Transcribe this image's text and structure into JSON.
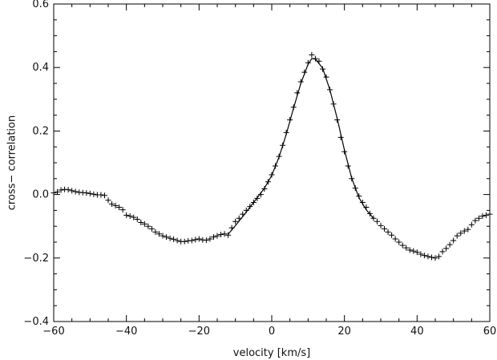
{
  "chart_data": {
    "type": "scatter",
    "xlabel": "velocity [km/s]",
    "ylabel": "cross− correlation",
    "xlim": [
      -60,
      60
    ],
    "ylim": [
      -0.4,
      0.6
    ],
    "x_ticks": [
      -60,
      -40,
      -20,
      0,
      20,
      40,
      60
    ],
    "x_tick_labels": [
      "−60",
      "−40",
      "−20",
      "0",
      "20",
      "40",
      "60"
    ],
    "y_ticks": [
      -0.4,
      -0.2,
      0.0,
      0.2,
      0.4,
      0.6
    ],
    "y_tick_labels": [
      "−0.4",
      "−0.2",
      "0.0",
      "0.2",
      "0.4",
      "0.6"
    ],
    "series": [
      {
        "marker": "plus",
        "points": [
          [
            -60,
            0.005
          ],
          [
            -59,
            0.008
          ],
          [
            -58,
            0.014
          ],
          [
            -57,
            0.016
          ],
          [
            -56,
            0.015
          ],
          [
            -55,
            0.012
          ],
          [
            -54,
            0.009
          ],
          [
            -53,
            0.007
          ],
          [
            -52,
            0.006
          ],
          [
            -51,
            0.005
          ],
          [
            -50,
            0.003
          ],
          [
            -49,
            0.001
          ],
          [
            -48,
            -0.001
          ],
          [
            -47,
            -0.001
          ],
          [
            -46,
            -0.003
          ],
          [
            -45,
            -0.018
          ],
          [
            -44,
            -0.03
          ],
          [
            -43,
            -0.035
          ],
          [
            -42,
            -0.04
          ],
          [
            -41,
            -0.048
          ],
          [
            -40,
            -0.065
          ],
          [
            -39,
            -0.068
          ],
          [
            -38,
            -0.072
          ],
          [
            -37,
            -0.078
          ],
          [
            -36,
            -0.088
          ],
          [
            -35,
            -0.093
          ],
          [
            -34,
            -0.1
          ],
          [
            -33,
            -0.108
          ],
          [
            -32,
            -0.118
          ],
          [
            -31,
            -0.124
          ],
          [
            -30,
            -0.13
          ],
          [
            -29,
            -0.134
          ],
          [
            -28,
            -0.138
          ],
          [
            -27,
            -0.141
          ],
          [
            -26,
            -0.145
          ],
          [
            -25,
            -0.148
          ],
          [
            -24,
            -0.148
          ],
          [
            -23,
            -0.146
          ],
          [
            -22,
            -0.145
          ],
          [
            -21,
            -0.142
          ],
          [
            -20,
            -0.14
          ],
          [
            -19,
            -0.143
          ],
          [
            -18,
            -0.144
          ],
          [
            -17,
            -0.14
          ],
          [
            -16,
            -0.134
          ],
          [
            -15,
            -0.13
          ],
          [
            -14,
            -0.126
          ],
          [
            -13,
            -0.124
          ],
          [
            -12,
            -0.128
          ],
          [
            -11,
            -0.105
          ],
          [
            -10,
            -0.085
          ],
          [
            -9,
            -0.075
          ],
          [
            -8,
            -0.062
          ],
          [
            -7,
            -0.05
          ],
          [
            -6,
            -0.038
          ],
          [
            -5,
            -0.025
          ],
          [
            -4,
            -0.012
          ],
          [
            -3,
            0.0
          ],
          [
            -2,
            0.018
          ],
          [
            -1,
            0.04
          ],
          [
            0,
            0.062
          ],
          [
            1,
            0.09
          ],
          [
            2,
            0.12
          ],
          [
            3,
            0.155
          ],
          [
            4,
            0.195
          ],
          [
            5,
            0.235
          ],
          [
            6,
            0.275
          ],
          [
            7,
            0.32
          ],
          [
            8,
            0.355
          ],
          [
            9,
            0.385
          ],
          [
            10,
            0.415
          ],
          [
            11,
            0.44
          ],
          [
            12,
            0.428
          ],
          [
            13,
            0.42
          ],
          [
            14,
            0.395
          ],
          [
            15,
            0.37
          ],
          [
            16,
            0.33
          ],
          [
            17,
            0.285
          ],
          [
            18,
            0.235
          ],
          [
            19,
            0.18
          ],
          [
            20,
            0.135
          ],
          [
            21,
            0.09
          ],
          [
            22,
            0.05
          ],
          [
            23,
            0.02
          ],
          [
            24,
            -0.005
          ],
          [
            25,
            -0.025
          ],
          [
            26,
            -0.04
          ],
          [
            27,
            -0.06
          ],
          [
            28,
            -0.075
          ],
          [
            29,
            -0.085
          ],
          [
            30,
            -0.098
          ],
          [
            31,
            -0.108
          ],
          [
            32,
            -0.118
          ],
          [
            33,
            -0.128
          ],
          [
            34,
            -0.14
          ],
          [
            35,
            -0.15
          ],
          [
            36,
            -0.16
          ],
          [
            37,
            -0.168
          ],
          [
            38,
            -0.175
          ],
          [
            39,
            -0.178
          ],
          [
            40,
            -0.182
          ],
          [
            41,
            -0.188
          ],
          [
            42,
            -0.192
          ],
          [
            43,
            -0.195
          ],
          [
            44,
            -0.198
          ],
          [
            45,
            -0.2
          ],
          [
            46,
            -0.195
          ],
          [
            47,
            -0.18
          ],
          [
            48,
            -0.17
          ],
          [
            49,
            -0.158
          ],
          [
            50,
            -0.145
          ],
          [
            51,
            -0.13
          ],
          [
            52,
            -0.122
          ],
          [
            53,
            -0.115
          ],
          [
            54,
            -0.11
          ],
          [
            55,
            -0.095
          ],
          [
            56,
            -0.082
          ],
          [
            57,
            -0.075
          ],
          [
            58,
            -0.068
          ],
          [
            59,
            -0.065
          ],
          [
            60,
            -0.062
          ]
        ]
      },
      {
        "type": "line",
        "points": [
          [
            -12,
            -0.125
          ],
          [
            -10,
            -0.098
          ],
          [
            -8,
            -0.07
          ],
          [
            -6,
            -0.04
          ],
          [
            -4,
            -0.01
          ],
          [
            -2,
            0.02
          ],
          [
            0,
            0.06
          ],
          [
            2,
            0.118
          ],
          [
            4,
            0.19
          ],
          [
            6,
            0.272
          ],
          [
            8,
            0.35
          ],
          [
            10,
            0.41
          ],
          [
            11,
            0.428
          ],
          [
            12,
            0.427
          ],
          [
            14,
            0.398
          ],
          [
            16,
            0.33
          ],
          [
            18,
            0.24
          ],
          [
            20,
            0.14
          ],
          [
            22,
            0.052
          ],
          [
            24,
            -0.01
          ],
          [
            26,
            -0.048
          ],
          [
            28,
            -0.075
          ]
        ]
      }
    ],
    "grid": false,
    "legend": "none"
  }
}
